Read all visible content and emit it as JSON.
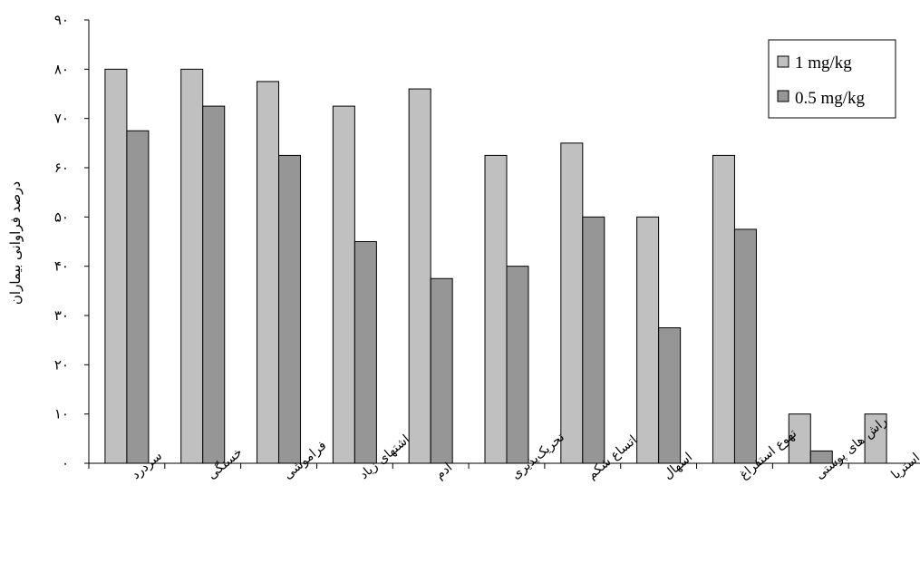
{
  "chart_data": {
    "type": "bar",
    "title": "",
    "xlabel": "",
    "ylabel": "درصد فراوانی بیماران",
    "ylim": [
      0,
      90
    ],
    "yticks": [
      0,
      10,
      20,
      30,
      40,
      50,
      60,
      70,
      80,
      90
    ],
    "ytick_labels": [
      "۰",
      "۱۰",
      "۲۰",
      "۳۰",
      "۴۰",
      "۵۰",
      "۶۰",
      "۷۰",
      "۸۰",
      "۹۰"
    ],
    "grid": false,
    "legend_position": "top-right",
    "categories": [
      "سردرد",
      "خستگی",
      "فراموشی",
      "اشتهای زیاد",
      "ادم",
      "تحریک‌پذیری",
      "اتساع شکم",
      "اسهال",
      "تهوع استفراغ",
      "راش های پوستی",
      "استریا"
    ],
    "series": [
      {
        "name": "1 mg/kg",
        "color": "#c0c0c0",
        "values": [
          80,
          80,
          77.5,
          72.5,
          76,
          62.5,
          65,
          50,
          62.5,
          10,
          10
        ]
      },
      {
        "name": "0.5 mg/kg",
        "color": "#969696",
        "values": [
          67.5,
          72.5,
          62.5,
          45,
          37.5,
          40,
          50,
          27.5,
          47.5,
          2.5,
          0
        ]
      }
    ]
  }
}
